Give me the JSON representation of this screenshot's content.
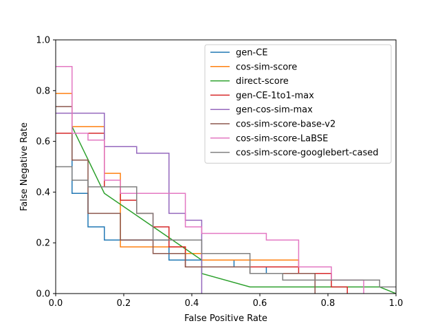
{
  "chart_data": {
    "type": "line",
    "title": "",
    "xlabel": "False Positive Rate",
    "ylabel": "False Negative Rate",
    "xlim": [
      0.0,
      1.0
    ],
    "ylim": [
      0.0,
      1.0
    ],
    "xticks": [
      "0.0",
      "0.2",
      "0.4",
      "0.6",
      "0.8",
      "1.0"
    ],
    "yticks": [
      "0.0",
      "0.2",
      "0.4",
      "0.6",
      "0.8",
      "1.0"
    ],
    "grid": false,
    "legend_position": "upper-right",
    "series": [
      {
        "name": "gen-CE",
        "color": "#1f77b4",
        "x": [
          0.048,
          0.048,
          0.095,
          0.095,
          0.143,
          0.143,
          0.333,
          0.333,
          0.429,
          0.429,
          0.524,
          0.524,
          0.619,
          0.619,
          0.714
        ],
        "y": [
          0.658,
          0.395,
          0.395,
          0.263,
          0.263,
          0.211,
          0.211,
          0.132,
          0.132,
          0.132,
          0.132,
          0.105,
          0.105,
          0.079,
          0.079
        ]
      },
      {
        "name": "cos-sim-score",
        "color": "#ff7f0e",
        "x": [
          0.0,
          0.048,
          0.048,
          0.143,
          0.143,
          0.19,
          0.19,
          0.381,
          0.381,
          0.429,
          0.429,
          0.714,
          0.714
        ],
        "y": [
          0.789,
          0.789,
          0.658,
          0.658,
          0.474,
          0.474,
          0.184,
          0.184,
          0.158,
          0.158,
          0.132,
          0.132,
          0.105
        ]
      },
      {
        "name": "direct-score",
        "color": "#2ca02c",
        "x": [
          0.048,
          0.143,
          0.429,
          0.429,
          0.571,
          0.952,
          1.0
        ],
        "y": [
          0.658,
          0.395,
          0.132,
          0.079,
          0.026,
          0.026,
          0.0
        ]
      },
      {
        "name": "gen-CE-1to1-max",
        "color": "#d62728",
        "x": [
          0.0,
          0.048,
          0.048,
          0.143,
          0.143,
          0.19,
          0.19,
          0.238,
          0.238,
          0.286,
          0.286,
          0.333,
          0.333,
          0.381,
          0.381,
          0.476,
          0.476,
          0.714,
          0.714,
          0.81,
          0.81,
          0.857,
          0.857
        ],
        "y": [
          0.632,
          0.632,
          0.632,
          0.632,
          0.421,
          0.421,
          0.368,
          0.368,
          0.316,
          0.316,
          0.263,
          0.263,
          0.184,
          0.184,
          0.105,
          0.105,
          0.105,
          0.105,
          0.079,
          0.079,
          0.026,
          0.026,
          0.0
        ]
      },
      {
        "name": "gen-cos-sim-max",
        "color": "#9467bd",
        "x": [
          0.0,
          0.143,
          0.143,
          0.238,
          0.238,
          0.333,
          0.333,
          0.381,
          0.381,
          0.429,
          0.429
        ],
        "y": [
          0.711,
          0.711,
          0.579,
          0.579,
          0.553,
          0.553,
          0.316,
          0.316,
          0.289,
          0.289,
          0.0
        ]
      },
      {
        "name": "cos-sim-score-base-v2",
        "color": "#8c564b",
        "x": [
          0.0,
          0.048,
          0.048,
          0.095,
          0.095,
          0.19,
          0.19,
          0.286,
          0.286,
          0.381,
          0.381,
          0.571,
          0.571,
          0.762,
          0.762
        ],
        "y": [
          0.737,
          0.737,
          0.526,
          0.526,
          0.316,
          0.316,
          0.211,
          0.211,
          0.158,
          0.158,
          0.105,
          0.105,
          0.079,
          0.079,
          0.0
        ]
      },
      {
        "name": "cos-sim-score-LaBSE",
        "color": "#e377c2",
        "x": [
          0.0,
          0.048,
          0.048,
          0.095,
          0.095,
          0.143,
          0.143,
          0.19,
          0.19,
          0.381,
          0.381,
          0.429,
          0.429,
          0.619,
          0.619,
          0.714,
          0.714,
          0.81,
          0.81,
          0.905,
          0.905
        ],
        "y": [
          0.895,
          0.895,
          0.632,
          0.632,
          0.605,
          0.605,
          0.447,
          0.447,
          0.395,
          0.395,
          0.263,
          0.263,
          0.237,
          0.237,
          0.211,
          0.211,
          0.105,
          0.105,
          0.053,
          0.053,
          0.0
        ]
      },
      {
        "name": "cos-sim-score-googlebert-cased",
        "color": "#7f7f7f",
        "x": [
          0.0,
          0.048,
          0.048,
          0.095,
          0.095,
          0.238,
          0.238,
          0.286,
          0.286,
          0.429,
          0.429,
          0.571,
          0.571,
          0.667,
          0.667,
          0.952,
          0.952,
          1.0
        ],
        "y": [
          0.5,
          0.5,
          0.447,
          0.447,
          0.421,
          0.421,
          0.316,
          0.316,
          0.211,
          0.211,
          0.158,
          0.158,
          0.079,
          0.079,
          0.053,
          0.053,
          0.026,
          0.026
        ]
      }
    ]
  }
}
